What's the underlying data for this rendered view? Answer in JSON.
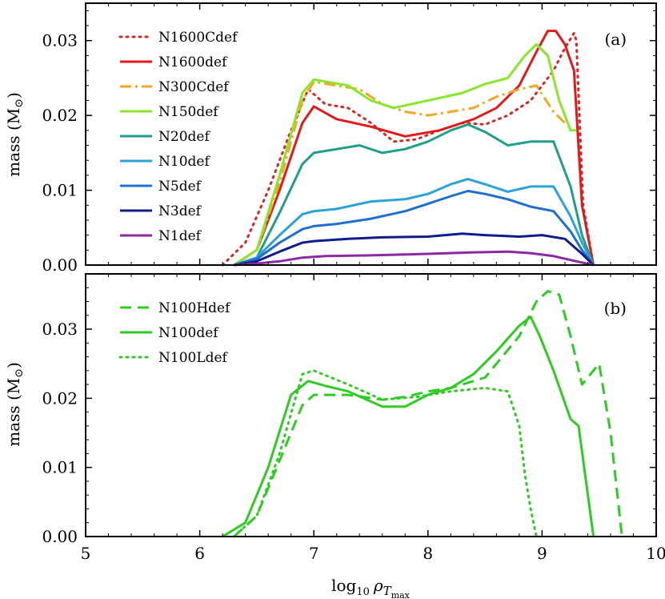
{
  "chart_data": [
    {
      "type": "line",
      "panel_tag": "(a)",
      "ylabel": "mass (M☉)",
      "ylabel_text": "mass (M",
      "ylabel_sub": ")",
      "xlim": [
        5,
        10
      ],
      "ylim": [
        0,
        0.035
      ],
      "y_ticks": [
        0.0,
        0.01,
        0.02,
        0.03
      ],
      "y_tick_labels": [
        "0.00",
        "0.01",
        "0.02",
        "0.03"
      ],
      "legend_position": "top-left",
      "series": [
        {
          "name": "N1600Cdef",
          "color": "#d62728",
          "style": "dotted",
          "x": [
            6.2,
            6.4,
            6.6,
            6.8,
            6.95,
            7.1,
            7.3,
            7.5,
            7.7,
            7.9,
            8.1,
            8.3,
            8.5,
            8.7,
            8.9,
            9.1,
            9.2,
            9.28,
            9.3,
            9.36,
            9.45
          ],
          "y": [
            0.0,
            0.003,
            0.01,
            0.018,
            0.0235,
            0.0215,
            0.021,
            0.019,
            0.0165,
            0.0168,
            0.018,
            0.019,
            0.0188,
            0.02,
            0.022,
            0.026,
            0.029,
            0.031,
            0.03,
            0.008,
            0.0
          ]
        },
        {
          "name": "N1600def",
          "color": "#e31a1c",
          "style": "solid",
          "x": [
            6.3,
            6.5,
            6.7,
            6.9,
            7.0,
            7.2,
            7.5,
            7.8,
            8.1,
            8.4,
            8.6,
            8.8,
            8.95,
            9.05,
            9.12,
            9.2,
            9.28,
            9.35,
            9.45
          ],
          "y": [
            0.0,
            0.002,
            0.01,
            0.019,
            0.0212,
            0.0195,
            0.0185,
            0.0172,
            0.018,
            0.0195,
            0.021,
            0.024,
            0.0285,
            0.0313,
            0.0313,
            0.0295,
            0.026,
            0.008,
            0.0
          ]
        },
        {
          "name": "N300Cdef",
          "color": "#f5a623",
          "style": "dashdot",
          "x": [
            6.3,
            6.5,
            6.7,
            6.9,
            7.0,
            7.2,
            7.4,
            7.6,
            7.8,
            8.0,
            8.2,
            8.4,
            8.6,
            8.8,
            8.95,
            9.1,
            9.2
          ],
          "y": [
            0.0,
            0.002,
            0.011,
            0.022,
            0.0245,
            0.024,
            0.0235,
            0.0215,
            0.0205,
            0.02,
            0.0205,
            0.021,
            0.0225,
            0.0235,
            0.024,
            0.0205,
            0.019
          ]
        },
        {
          "name": "N150def",
          "color": "#88e62b",
          "style": "solid",
          "x": [
            6.3,
            6.5,
            6.7,
            6.9,
            7.0,
            7.3,
            7.5,
            7.7,
            8.0,
            8.3,
            8.5,
            8.7,
            8.85,
            8.95,
            9.05,
            9.15,
            9.25,
            9.3
          ],
          "y": [
            0.0,
            0.002,
            0.012,
            0.023,
            0.0248,
            0.024,
            0.022,
            0.021,
            0.022,
            0.023,
            0.0242,
            0.025,
            0.028,
            0.0295,
            0.028,
            0.022,
            0.018,
            0.018
          ]
        },
        {
          "name": "N20def",
          "color": "#1f9e89",
          "style": "solid",
          "x": [
            6.3,
            6.5,
            6.7,
            6.9,
            7.0,
            7.2,
            7.4,
            7.6,
            7.8,
            8.0,
            8.2,
            8.35,
            8.5,
            8.7,
            8.9,
            9.1,
            9.25,
            9.35,
            9.45
          ],
          "y": [
            0.0,
            0.001,
            0.007,
            0.0135,
            0.015,
            0.0155,
            0.016,
            0.015,
            0.0155,
            0.0165,
            0.018,
            0.0188,
            0.0178,
            0.016,
            0.0165,
            0.0165,
            0.0105,
            0.004,
            0.0
          ]
        },
        {
          "name": "N10def",
          "color": "#2ba3d6",
          "style": "solid",
          "x": [
            6.3,
            6.5,
            6.7,
            6.9,
            7.0,
            7.2,
            7.5,
            7.8,
            8.0,
            8.2,
            8.35,
            8.5,
            8.7,
            8.9,
            9.1,
            9.25,
            9.35,
            9.45
          ],
          "y": [
            0.0,
            0.001,
            0.004,
            0.0068,
            0.0072,
            0.0075,
            0.0085,
            0.0088,
            0.0095,
            0.0108,
            0.0115,
            0.0108,
            0.0098,
            0.0105,
            0.0105,
            0.0065,
            0.003,
            0.0
          ]
        },
        {
          "name": "N5def",
          "color": "#1f6fd0",
          "style": "solid",
          "x": [
            6.3,
            6.5,
            6.7,
            6.9,
            7.0,
            7.2,
            7.5,
            7.8,
            8.0,
            8.2,
            8.35,
            8.5,
            8.7,
            8.9,
            9.1,
            9.25,
            9.35,
            9.45
          ],
          "y": [
            0.0,
            0.0008,
            0.003,
            0.0048,
            0.0052,
            0.0055,
            0.0062,
            0.0072,
            0.0082,
            0.0092,
            0.0099,
            0.0095,
            0.0088,
            0.0078,
            0.0072,
            0.0045,
            0.002,
            0.0
          ]
        },
        {
          "name": "N3def",
          "color": "#101c8c",
          "style": "solid",
          "x": [
            6.3,
            6.5,
            6.7,
            6.9,
            7.0,
            7.3,
            7.6,
            8.0,
            8.3,
            8.5,
            8.8,
            9.0,
            9.2,
            9.35,
            9.45
          ],
          "y": [
            0.0,
            0.0005,
            0.0018,
            0.003,
            0.0032,
            0.0035,
            0.0037,
            0.0038,
            0.0042,
            0.004,
            0.0038,
            0.004,
            0.0035,
            0.0015,
            0.0
          ]
        },
        {
          "name": "N1def",
          "color": "#8b2aa3",
          "style": "solid",
          "x": [
            6.3,
            6.5,
            6.7,
            6.9,
            7.1,
            7.5,
            8.0,
            8.4,
            8.7,
            8.9,
            9.1,
            9.3,
            9.45
          ],
          "y": [
            0.0,
            0.0002,
            0.0005,
            0.001,
            0.0012,
            0.0013,
            0.0015,
            0.0017,
            0.0018,
            0.0016,
            0.0012,
            0.0005,
            0.0
          ]
        }
      ]
    },
    {
      "type": "line",
      "panel_tag": "(b)",
      "ylabel": "mass (M☉)",
      "ylabel_text": "mass (M",
      "ylabel_sub": ")",
      "xlabel": "log10 ρTmax",
      "xlabel_main": "log",
      "xlabel_sub10": "10",
      "xlabel_rho": "ρ",
      "xlabel_T": "T",
      "xlabel_max": "max",
      "xlim": [
        5,
        10
      ],
      "ylim": [
        0,
        0.038
      ],
      "x_ticks": [
        5,
        6,
        7,
        8,
        9,
        10
      ],
      "x_tick_labels": [
        "5",
        "6",
        "7",
        "8",
        "9",
        "10"
      ],
      "y_ticks": [
        0.0,
        0.01,
        0.02,
        0.03
      ],
      "y_tick_labels": [
        "0.00",
        "0.01",
        "0.02",
        "0.03"
      ],
      "legend_position": "top-left",
      "series": [
        {
          "name": "N100Hdef",
          "color": "#2ecc22",
          "style": "dashed",
          "x": [
            6.3,
            6.5,
            6.7,
            6.9,
            7.0,
            7.3,
            7.6,
            7.8,
            8.0,
            8.2,
            8.5,
            8.8,
            8.95,
            9.05,
            9.15,
            9.25,
            9.35,
            9.5,
            9.6,
            9.7
          ],
          "y": [
            0.0,
            0.003,
            0.011,
            0.019,
            0.0205,
            0.0205,
            0.0198,
            0.0202,
            0.021,
            0.0215,
            0.023,
            0.029,
            0.034,
            0.0355,
            0.035,
            0.029,
            0.022,
            0.025,
            0.015,
            0.0
          ]
        },
        {
          "name": "N100def",
          "color": "#2ecc22",
          "style": "solid",
          "x": [
            6.2,
            6.4,
            6.6,
            6.8,
            6.95,
            7.1,
            7.3,
            7.6,
            7.8,
            8.0,
            8.2,
            8.4,
            8.6,
            8.8,
            8.9,
            8.98,
            9.1,
            9.25,
            9.32,
            9.45
          ],
          "y": [
            0.0,
            0.002,
            0.01,
            0.0205,
            0.0225,
            0.0218,
            0.021,
            0.0188,
            0.0188,
            0.0205,
            0.0215,
            0.0235,
            0.0268,
            0.0305,
            0.0318,
            0.029,
            0.024,
            0.017,
            0.016,
            0.0
          ]
        },
        {
          "name": "N100Ldef",
          "color": "#2ecc22",
          "style": "dotted",
          "x": [
            6.3,
            6.5,
            6.7,
            6.9,
            7.0,
            7.3,
            7.6,
            7.9,
            8.2,
            8.5,
            8.7,
            8.8,
            8.85,
            8.9,
            8.95
          ],
          "y": [
            0.0,
            0.003,
            0.012,
            0.0235,
            0.024,
            0.022,
            0.0198,
            0.0202,
            0.021,
            0.0215,
            0.021,
            0.016,
            0.009,
            0.004,
            0.0
          ]
        }
      ]
    }
  ]
}
